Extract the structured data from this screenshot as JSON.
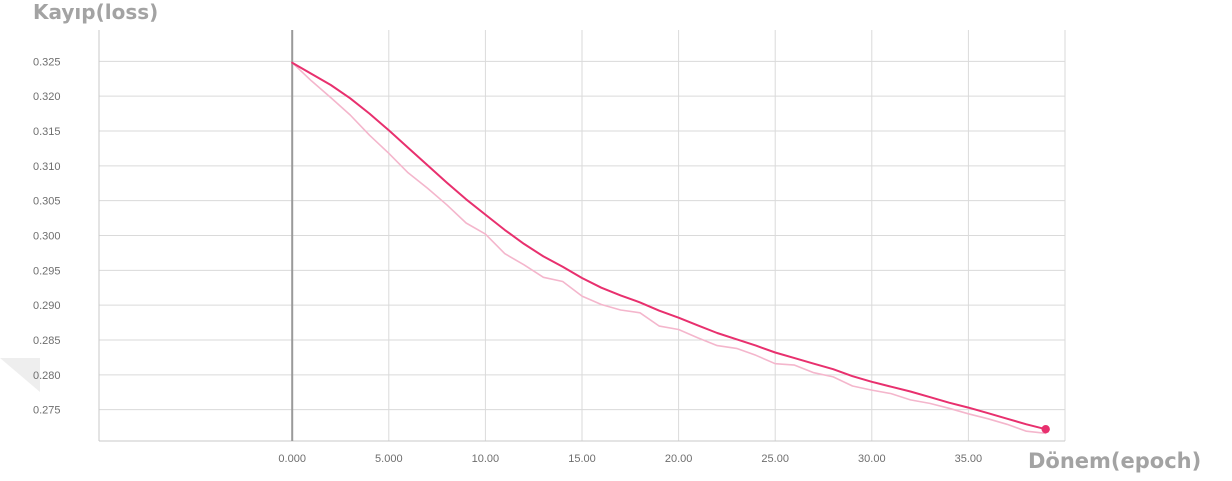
{
  "chart_data": {
    "type": "line",
    "ylabel": "Kayıp(loss)",
    "xlabel": "Dönem(epoch)",
    "xlim": [
      -10,
      40
    ],
    "ylim": [
      0.2705,
      0.3295
    ],
    "x_ticks": [
      0,
      5,
      10,
      15,
      20,
      25,
      30,
      35
    ],
    "x_tick_labels": [
      "0.000",
      "5.000",
      "10.00",
      "15.00",
      "20.00",
      "25.00",
      "30.00",
      "35.00"
    ],
    "y_ticks": [
      0.275,
      0.28,
      0.285,
      0.29,
      0.295,
      0.3,
      0.305,
      0.31,
      0.315,
      0.32,
      0.325
    ],
    "y_tick_labels": [
      "0.275",
      "0.280",
      "0.285",
      "0.290",
      "0.295",
      "0.300",
      "0.305",
      "0.310",
      "0.315",
      "0.320",
      "0.325"
    ],
    "grid": true,
    "series": [
      {
        "role": "smoothed",
        "color": "#e8306e",
        "x": [
          0,
          1,
          2,
          3,
          4,
          5,
          6,
          7,
          8,
          9,
          10,
          11,
          12,
          13,
          14,
          15,
          16,
          17,
          18,
          19,
          20,
          21,
          22,
          23,
          24,
          25,
          26,
          27,
          28,
          29,
          30,
          31,
          32,
          33,
          34,
          35,
          36,
          37,
          38,
          39
        ],
        "values": [
          0.3248,
          0.3232,
          0.3216,
          0.3197,
          0.3175,
          0.3151,
          0.3126,
          0.3101,
          0.3076,
          0.3052,
          0.303,
          0.3008,
          0.2988,
          0.297,
          0.2955,
          0.2939,
          0.2925,
          0.2914,
          0.2904,
          0.2892,
          0.2882,
          0.2871,
          0.286,
          0.2851,
          0.2842,
          0.2832,
          0.2824,
          0.2816,
          0.2808,
          0.2798,
          0.279,
          0.2783,
          0.2776,
          0.2768,
          0.276,
          0.2753,
          0.2745,
          0.2737,
          0.2729,
          0.2722
        ]
      },
      {
        "role": "raw",
        "color": "#f4b6cc",
        "x": [
          0,
          1,
          2,
          3,
          4,
          5,
          6,
          7,
          8,
          9,
          10,
          11,
          12,
          13,
          14,
          15,
          16,
          17,
          18,
          19,
          20,
          21,
          22,
          23,
          24,
          25,
          26,
          27,
          28,
          29,
          30,
          31,
          32,
          33,
          34,
          35,
          36,
          37,
          38,
          39
        ],
        "values": [
          0.3248,
          0.3222,
          0.3198,
          0.3173,
          0.3144,
          0.3118,
          0.309,
          0.3068,
          0.3044,
          0.3018,
          0.3002,
          0.2974,
          0.2958,
          0.294,
          0.2934,
          0.2913,
          0.2901,
          0.2893,
          0.2889,
          0.287,
          0.2865,
          0.2853,
          0.2842,
          0.2838,
          0.2828,
          0.2816,
          0.2814,
          0.2803,
          0.2797,
          0.2784,
          0.2778,
          0.2773,
          0.2764,
          0.2759,
          0.2752,
          0.2744,
          0.2737,
          0.2729,
          0.2719,
          0.2716
        ]
      }
    ],
    "last_point": {
      "x": 39,
      "y": 0.2722
    }
  }
}
